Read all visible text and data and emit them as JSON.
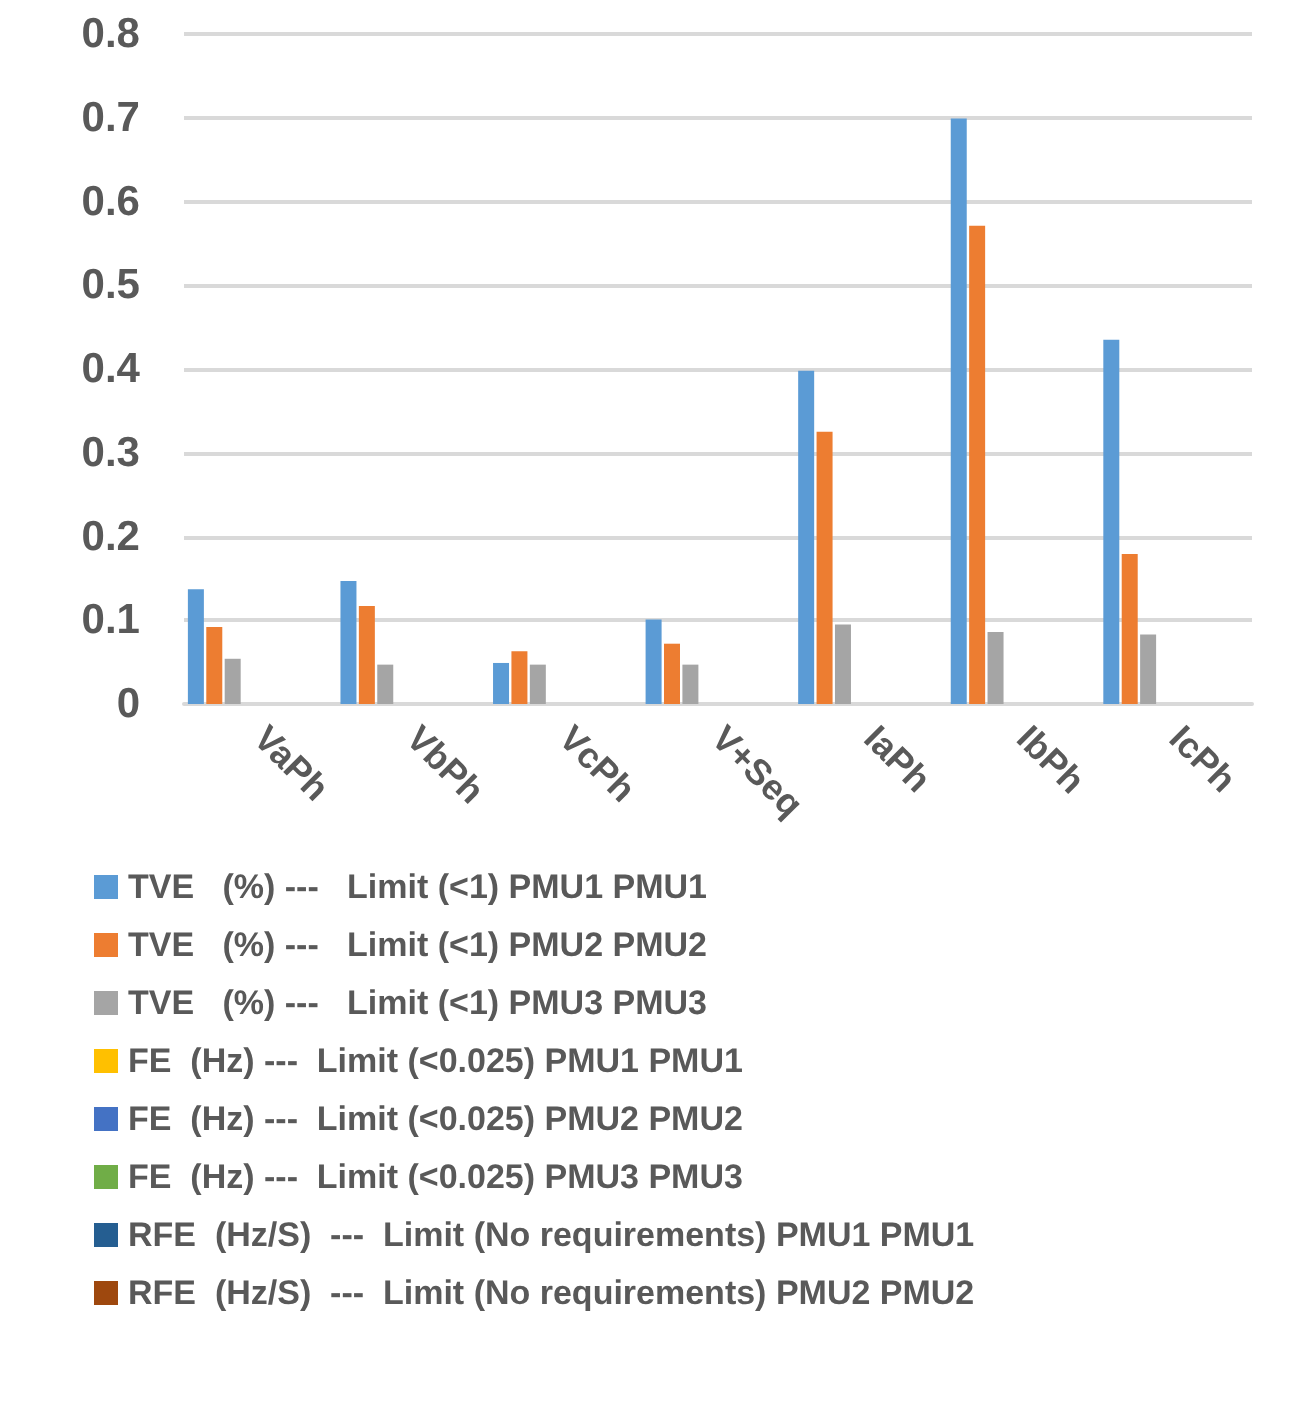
{
  "chart_data": {
    "type": "bar",
    "categories": [
      "VaPh",
      "VbPh",
      "VcPh",
      "V+Seq",
      "IaPh",
      "IbPh",
      "IcPh"
    ],
    "series": [
      {
        "name": "TVE   (%) ---   Limit (<1) PMU1 PMU1",
        "color": "#5b9bd5",
        "values": [
          0.137,
          0.147,
          0.049,
          0.101,
          0.398,
          0.699,
          0.435
        ]
      },
      {
        "name": "TVE   (%) ---   Limit (<1) PMU2 PMU2",
        "color": "#ed7d31",
        "values": [
          0.092,
          0.117,
          0.063,
          0.072,
          0.325,
          0.571,
          0.179
        ]
      },
      {
        "name": "TVE   (%) ---   Limit (<1) PMU3 PMU3",
        "color": "#a5a5a5",
        "values": [
          0.054,
          0.047,
          0.047,
          0.047,
          0.095,
          0.086,
          0.083
        ]
      },
      {
        "name": "FE  (Hz) ---  Limit (<0.025) PMU1 PMU1",
        "color": "#ffc000",
        "values": [
          0,
          0,
          0,
          0,
          0,
          0,
          0
        ]
      },
      {
        "name": "FE  (Hz) ---  Limit (<0.025) PMU2 PMU2",
        "color": "#4472c4",
        "values": [
          0,
          0,
          0,
          0,
          0,
          0,
          0
        ]
      },
      {
        "name": "FE  (Hz) ---  Limit (<0.025) PMU3 PMU3",
        "color": "#70ad47",
        "values": [
          0,
          0,
          0,
          0,
          0,
          0,
          0
        ]
      },
      {
        "name": "RFE  (Hz/S)  ---  Limit (No requirements) PMU1 PMU1",
        "color": "#255e91",
        "values": [
          0,
          0,
          0,
          0,
          0,
          0,
          0
        ]
      },
      {
        "name": "RFE  (Hz/S)  ---  Limit (No requirements) PMU2 PMU2",
        "color": "#9e480e",
        "values": [
          0,
          0,
          0,
          0,
          0,
          0,
          0
        ]
      }
    ],
    "ylim": [
      0,
      0.8
    ],
    "yticks": [
      0,
      0.1,
      0.2,
      0.3,
      0.4,
      0.5,
      0.6,
      0.7,
      0.8
    ],
    "grid": "y",
    "legend": "bottom"
  }
}
